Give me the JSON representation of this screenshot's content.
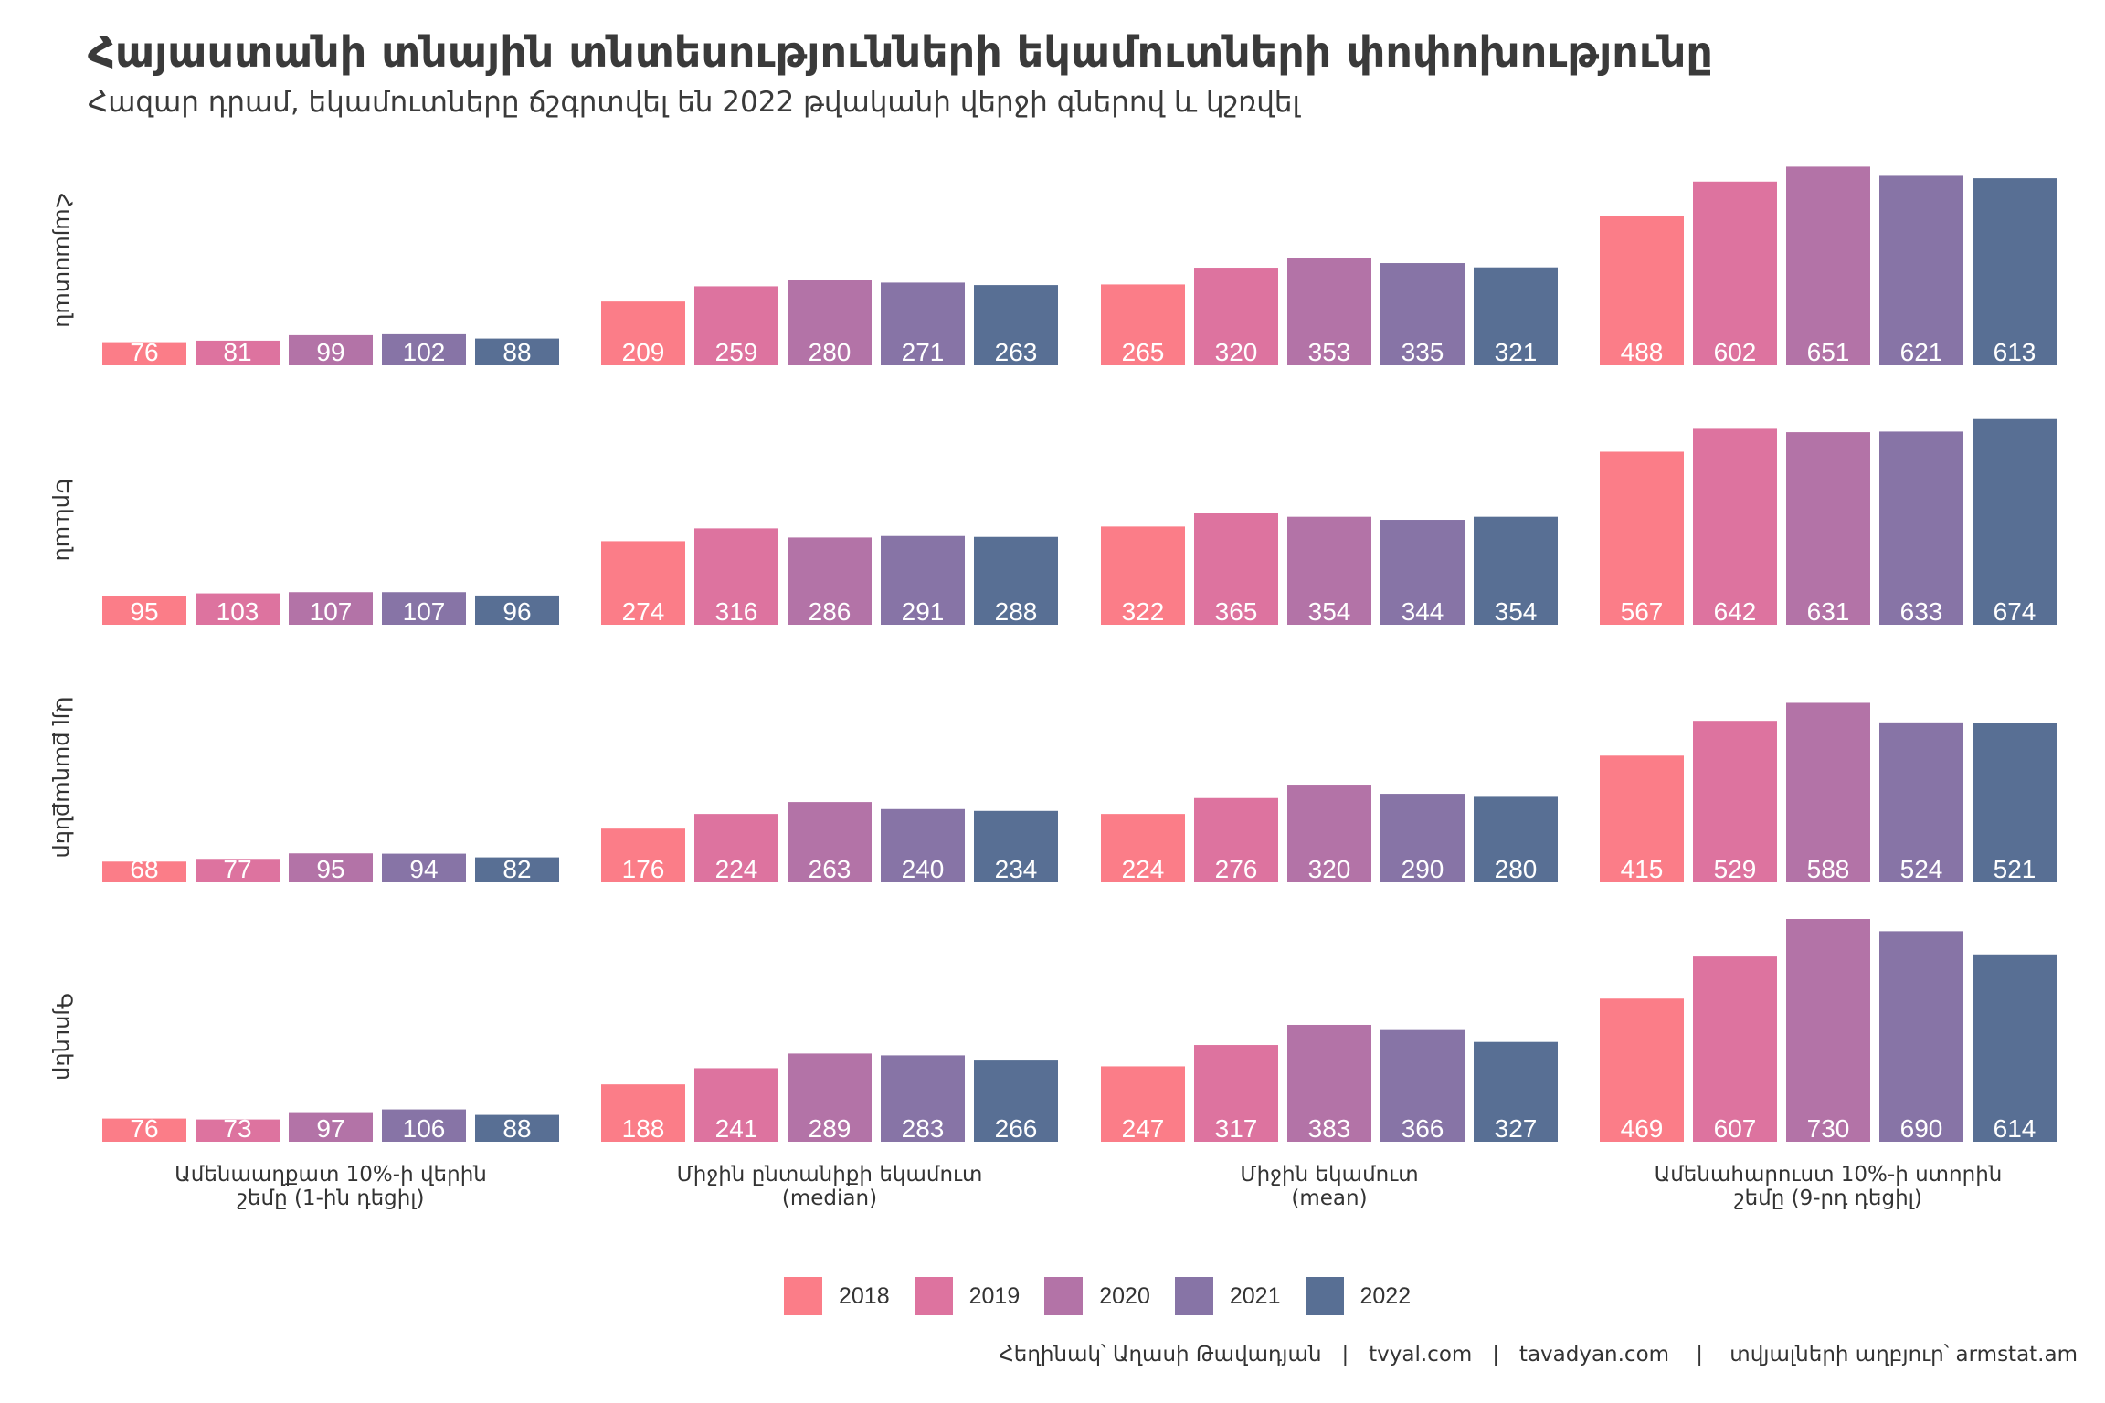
{
  "title": "Հայաստանի տնային տնտեսությունների եկամուտների փոփոխությունը",
  "subtitle": "Հազար դրամ, եկամուտները ճշգրտվել են 2022 թվականի վերջի գներով և կշռվել",
  "caption": "Հեղինակ՝ Աղասի Թավադյան   |   tvyal.com   |   tavadyan.com    |    տվյալների աղբյուր՝ armstat.am",
  "legend": [
    {
      "label": "2018",
      "color": "#FB7D88"
    },
    {
      "label": "2019",
      "color": "#DD739F"
    },
    {
      "label": "2020",
      "color": "#B373A7"
    },
    {
      "label": "2021",
      "color": "#8774A6"
    },
    {
      "label": "2022",
      "color": "#586F94"
    }
  ],
  "chart_data": {
    "type": "bar",
    "title": "Հայաստանի տնային տնտեսությունների եկամուտների փոփոխությունը",
    "subtitle": "Հազար դրամ, եկամուտները ճշգրտվել են 2022 թվականի վերջի գներով և կշռվել",
    "xlabel": "",
    "ylabel": "",
    "ylim": [
      0,
      730
    ],
    "grid": false,
    "legend_position": "bottom",
    "years": [
      "2018",
      "2019",
      "2020",
      "2021",
      "2022"
    ],
    "categories": [
      "Ամենաաղքատ 10%-ի վերին\nշեմը (1-ին դեցիլ)",
      "Միջին ընտանիքի եկամուտ\n(median)",
      "Միջին եկամուտ\n(mean)",
      "Ամենահարուստ 10%-ի ստորին\nշեմը (9-րդ դեցիլ)"
    ],
    "rows": [
      {
        "name": "Հայաստան",
        "values": [
          [
            76,
            81,
            99,
            102,
            88
          ],
          [
            209,
            259,
            280,
            271,
            263
          ],
          [
            265,
            320,
            353,
            335,
            321
          ],
          [
            488,
            602,
            651,
            621,
            613
          ]
        ]
      },
      {
        "name": "Երևան",
        "values": [
          [
            95,
            103,
            107,
            107,
            96
          ],
          [
            274,
            316,
            286,
            291,
            288
          ],
          [
            322,
            365,
            354,
            344,
            354
          ],
          [
            567,
            642,
            631,
            633,
            674
          ]
        ]
      },
      {
        "name": "Այլ քաղաքներ",
        "values": [
          [
            68,
            77,
            95,
            94,
            82
          ],
          [
            176,
            224,
            263,
            240,
            234
          ],
          [
            224,
            276,
            320,
            290,
            280
          ],
          [
            415,
            529,
            588,
            524,
            521
          ]
        ]
      },
      {
        "name": "Գյուղեր",
        "values": [
          [
            76,
            73,
            97,
            106,
            88
          ],
          [
            188,
            241,
            289,
            283,
            266
          ],
          [
            247,
            317,
            383,
            366,
            327
          ],
          [
            469,
            607,
            730,
            690,
            614
          ]
        ]
      }
    ]
  }
}
